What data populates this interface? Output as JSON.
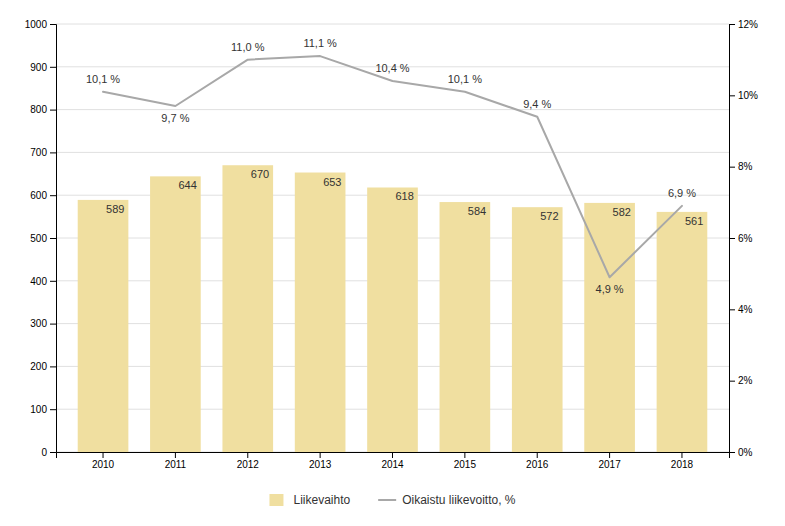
{
  "chart_data": {
    "type": "bar",
    "categories": [
      "2010",
      "2011",
      "2012",
      "2013",
      "2014",
      "2015",
      "2016",
      "2017",
      "2018"
    ],
    "series": [
      {
        "name": "Liikevaihto",
        "type": "bar",
        "color": "#F0DFA0",
        "values": [
          589,
          644,
          670,
          653,
          618,
          584,
          572,
          582,
          561
        ]
      },
      {
        "name": "Oikaistu liikevoitto, %",
        "type": "line",
        "axis": "y2",
        "color": "#A8A8A8",
        "values": [
          10.1,
          9.7,
          11.0,
          11.1,
          10.4,
          10.1,
          9.4,
          4.9,
          6.9
        ],
        "value_labels": [
          "10,1 %",
          "9,7 %",
          "11,0 %",
          "11,1 %",
          "10,4 %",
          "10,1 %",
          "9,4 %",
          "4,9 %",
          "6,9 %"
        ]
      }
    ],
    "ylim": [
      0,
      1000
    ],
    "yticks": [
      0,
      100,
      200,
      300,
      400,
      500,
      600,
      700,
      800,
      900,
      1000
    ],
    "y2lim": [
      0,
      12
    ],
    "y2ticks": [
      {
        "value": 0,
        "label": "0%"
      },
      {
        "value": 2,
        "label": "2%"
      },
      {
        "value": 4,
        "label": "4%"
      },
      {
        "value": 6,
        "label": "6%"
      },
      {
        "value": 8,
        "label": "8%"
      },
      {
        "value": 10,
        "label": "10%"
      },
      {
        "value": 12,
        "label": "12%"
      }
    ],
    "grid": true,
    "legend": "bottom",
    "data_labels": true
  }
}
